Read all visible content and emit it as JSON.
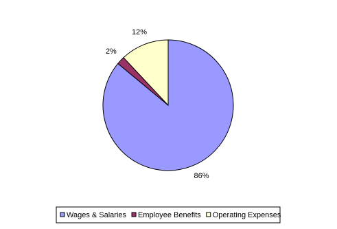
{
  "chart_data": {
    "type": "pie",
    "categories": [
      "Wages & Salaries",
      "Employee Benefits",
      "Operating Expenses"
    ],
    "values": [
      86,
      2,
      12
    ],
    "value_labels": [
      "86%",
      "2%",
      "12%"
    ],
    "colors": [
      "#9999ff",
      "#993366",
      "#ffffcc"
    ],
    "legend": "bottom"
  }
}
